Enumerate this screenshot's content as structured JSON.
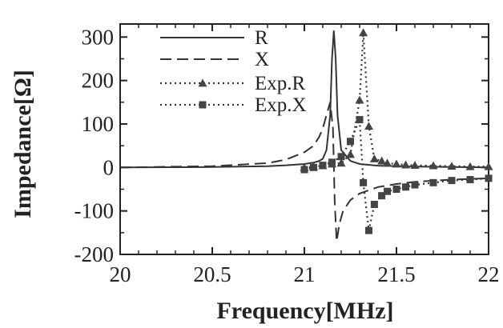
{
  "chart_data": {
    "type": "line",
    "title": "",
    "xlabel": "Frequency[MHz]",
    "ylabel": "Impedance[Ω]",
    "xlim": [
      20,
      22
    ],
    "ylim": [
      -200,
      330
    ],
    "xticks": [
      20,
      20.5,
      21,
      21.5,
      22
    ],
    "xtick_labels": [
      "20",
      "20.5",
      "21",
      "21.5",
      "22"
    ],
    "yticks": [
      -200,
      -100,
      0,
      100,
      200,
      300
    ],
    "ytick_labels": [
      "-200",
      "-100",
      "0",
      "100",
      "200",
      "300"
    ],
    "grid": false,
    "legend_position": "top-left",
    "series": [
      {
        "name": "R",
        "style": "solid",
        "x": [
          20,
          20.5,
          20.8,
          20.9,
          21.0,
          21.05,
          21.08,
          21.1,
          21.12,
          21.14,
          21.15,
          21.16,
          21.17,
          21.18,
          21.2,
          21.25,
          21.3,
          21.4,
          21.6,
          21.8,
          22
        ],
        "y": [
          0,
          1,
          3,
          5,
          8,
          11,
          15,
          20,
          40,
          120,
          250,
          315,
          250,
          120,
          40,
          15,
          8,
          4,
          2,
          1,
          0
        ]
      },
      {
        "name": "X",
        "style": "dashed",
        "x": [
          20,
          20.5,
          20.8,
          20.9,
          21.0,
          21.05,
          21.08,
          21.1,
          21.12,
          21.14,
          21.155,
          21.165,
          21.175,
          21.19,
          21.21,
          21.25,
          21.3,
          21.4,
          21.5,
          21.6,
          21.8,
          22
        ],
        "y": [
          0,
          3,
          10,
          18,
          35,
          50,
          70,
          90,
          120,
          150,
          90,
          -80,
          -170,
          -130,
          -100,
          -75,
          -60,
          -45,
          -38,
          -33,
          -28,
          -25
        ]
      },
      {
        "name": "Exp.R",
        "style": "dotted",
        "marker": "triangle",
        "x": [
          21.0,
          21.05,
          21.1,
          21.15,
          21.2,
          21.25,
          21.3,
          21.32,
          21.35,
          21.38,
          21.42,
          21.45,
          21.5,
          21.55,
          21.6,
          21.7,
          21.8,
          21.9,
          22.0
        ],
        "y": [
          0,
          2,
          4,
          8,
          10,
          30,
          155,
          310,
          95,
          20,
          15,
          10,
          8,
          6,
          5,
          4,
          3,
          2,
          2
        ]
      },
      {
        "name": "Exp.X",
        "style": "dotted",
        "marker": "square",
        "x": [
          21.0,
          21.05,
          21.1,
          21.15,
          21.2,
          21.25,
          21.3,
          21.32,
          21.35,
          21.38,
          21.42,
          21.45,
          21.5,
          21.55,
          21.6,
          21.7,
          21.8,
          21.9,
          22.0
        ],
        "y": [
          -5,
          0,
          5,
          12,
          25,
          60,
          110,
          -35,
          -145,
          -85,
          -65,
          -55,
          -50,
          -45,
          -40,
          -35,
          -30,
          -28,
          -25
        ]
      }
    ]
  }
}
